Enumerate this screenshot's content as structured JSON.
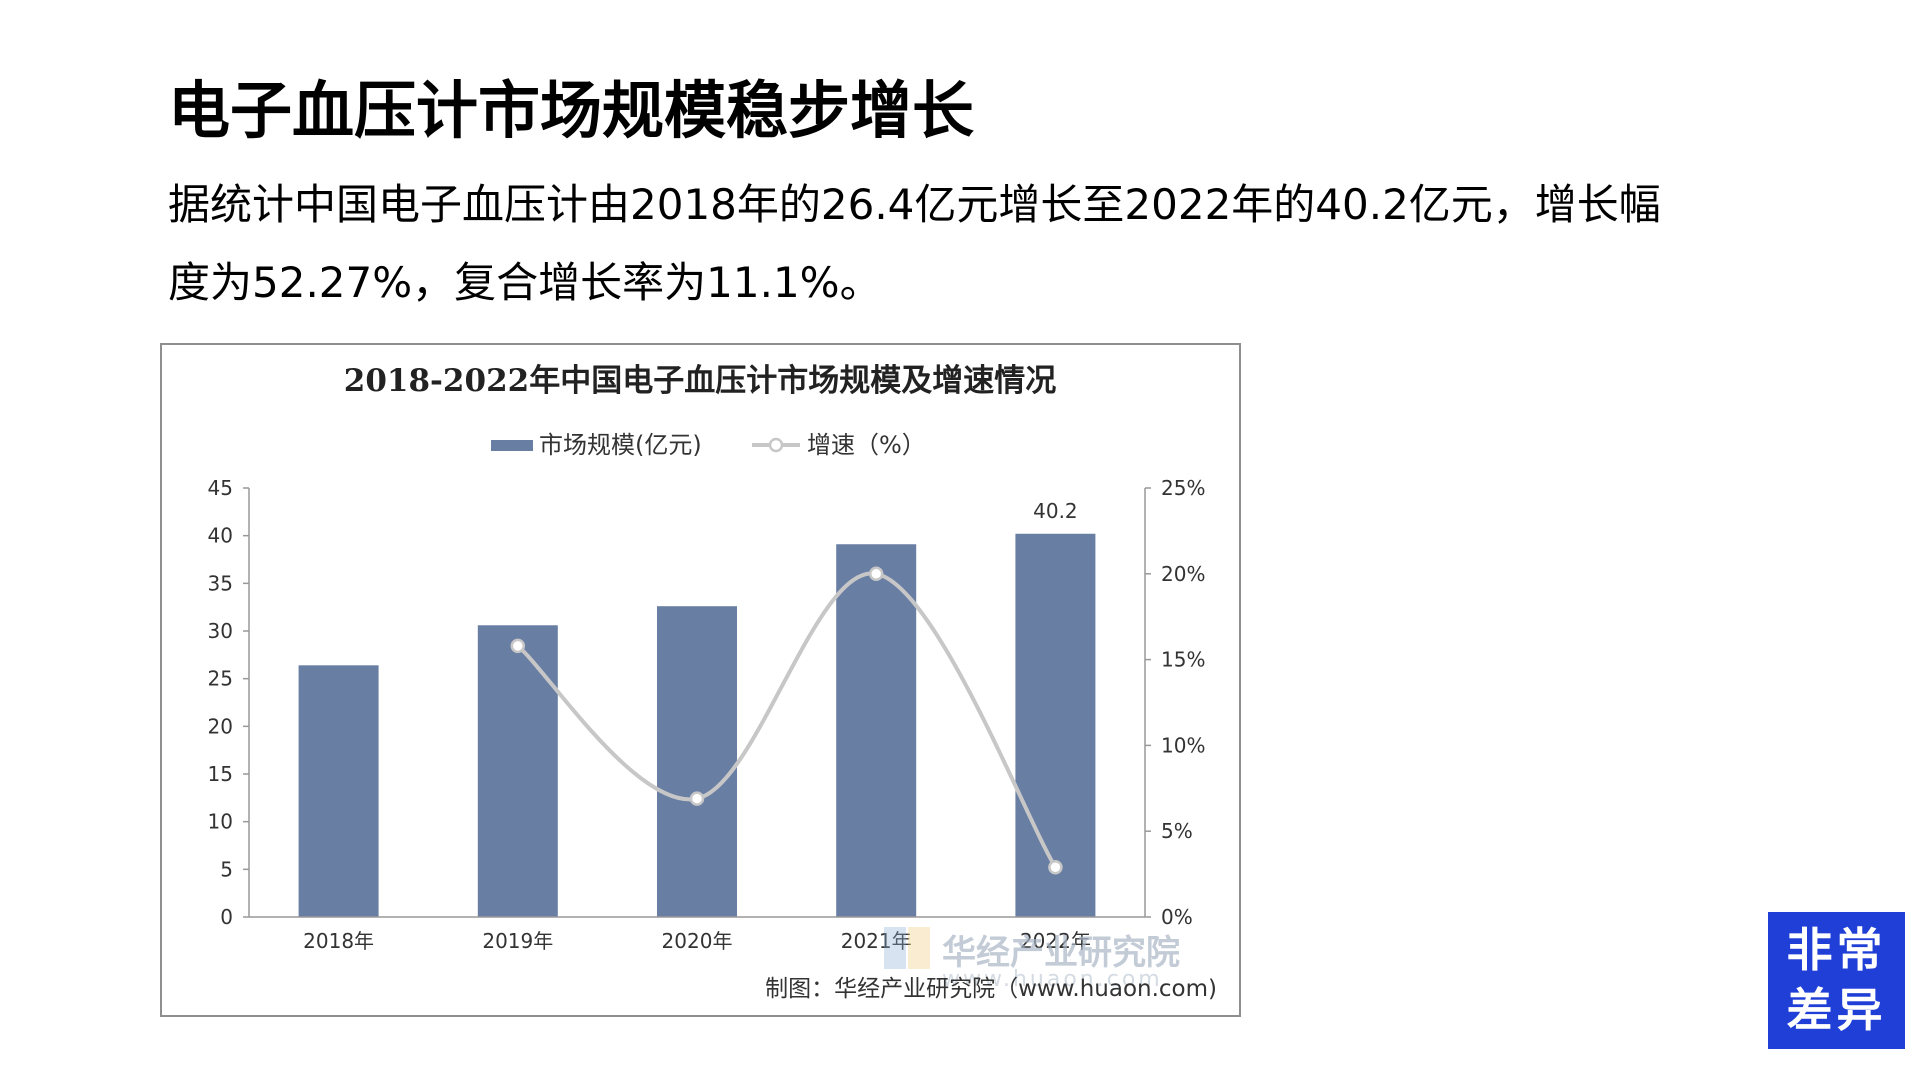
{
  "page": {
    "headline": "电子血压计市场规模稳步增长",
    "lead_line1": "据统计中国电子血压计由2018年的26.4亿元增长至2022年的40.2亿元，增长幅",
    "lead_line2": "度为52.27%，复合增长率为11.1%。"
  },
  "chart_data": {
    "type": "bar",
    "title": "2018-2022年中国电子血压计市场规模及增速情况",
    "categories": [
      "2018年",
      "2019年",
      "2020年",
      "2021年",
      "2022年"
    ],
    "series": [
      {
        "name": "市场规模(亿元)",
        "type": "bar",
        "axis": "left",
        "values": [
          26.4,
          30.6,
          32.6,
          39.1,
          40.2
        ],
        "color": "#697ea3"
      },
      {
        "name": "增速（%）",
        "type": "line",
        "axis": "right",
        "values": [
          null,
          15.8,
          6.9,
          20.0,
          2.9
        ],
        "color": "#c7c7c7"
      }
    ],
    "left_axis": {
      "ylim": [
        0,
        45
      ],
      "ticks": [
        "0",
        "5",
        "10",
        "15",
        "20",
        "25",
        "30",
        "35",
        "40",
        "45"
      ]
    },
    "right_axis": {
      "ylim": [
        0,
        25
      ],
      "ticks": [
        "0%",
        "5%",
        "10%",
        "15%",
        "20%",
        "25%"
      ]
    },
    "data_labels": [
      {
        "category": "2022年",
        "text": "40.2"
      }
    ],
    "legend_position": "top-center",
    "grid": false,
    "credit": "制图：华经产业研究院（www.huaon.com)",
    "watermark": {
      "name": "华经产业研究院",
      "url": "www.huaon.com"
    }
  },
  "badge": {
    "line1": "非常",
    "line2": "差异",
    "color": "#1f3fd6"
  }
}
